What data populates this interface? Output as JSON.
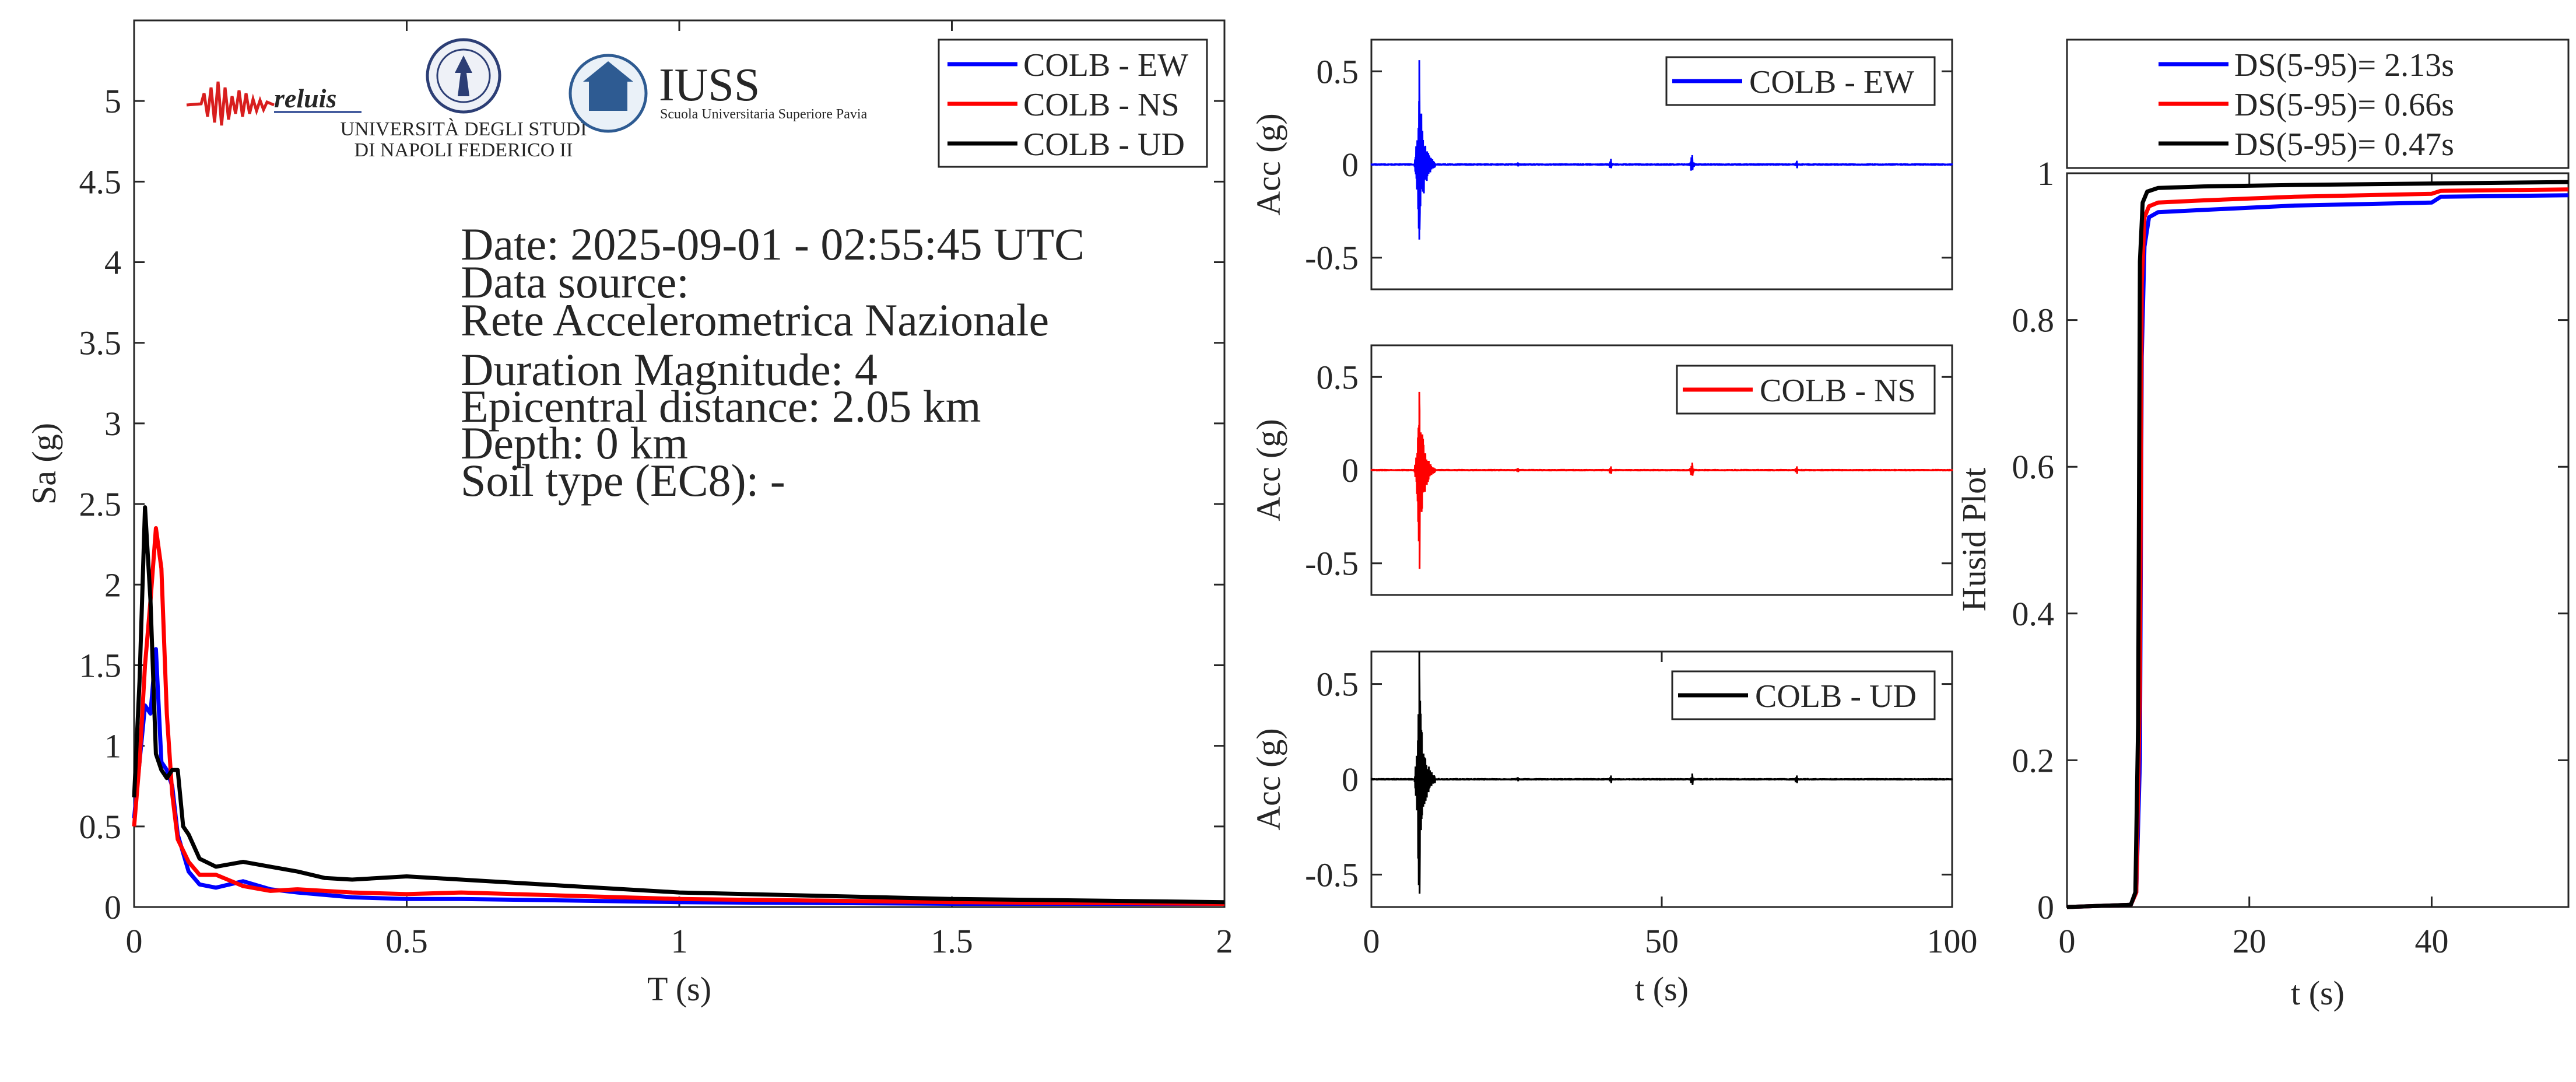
{
  "logos": {
    "reluis": "reluis",
    "unina_line1": "UNIVERSITÀ DEGLI STUDI",
    "unina_line2": "DI NAPOLI FEDERICO II",
    "iuss_name": "IUSS",
    "iuss_sub": "Scuola Universitaria Superiore Pavia"
  },
  "info": {
    "date": "Date: 2025-09-01 - 02:55:45 UTC",
    "data_source": "Data source:",
    "network": "Rete Accelerometrica Nazionale",
    "magnitude": "Duration Magnitude: 4",
    "distance": "Epicentral distance: 2.05 km",
    "depth": "Depth: 0 km",
    "soil": "Soil type (EC8): -"
  },
  "colors": {
    "ew": "#0000ff",
    "ns": "#ff0000",
    "ud": "#000000",
    "axis": "#262626"
  },
  "chart_data": [
    {
      "type": "line",
      "xlabel": "T (s)",
      "ylabel": "Sa (g)",
      "xlim": [
        0,
        2
      ],
      "ylim": [
        0,
        5.5
      ],
      "xticks": [
        "0",
        "0.5",
        "1",
        "1.5",
        "2"
      ],
      "yticks": [
        "0",
        "0.5",
        "1",
        "1.5",
        "2",
        "2.5",
        "3",
        "3.5",
        "4",
        "4.5",
        "5"
      ],
      "legend": "top-right",
      "series": [
        {
          "name": "COLB - EW",
          "color": "#0000ff",
          "x": [
            0,
            0.01,
            0.02,
            0.03,
            0.04,
            0.05,
            0.06,
            0.07,
            0.08,
            0.1,
            0.12,
            0.15,
            0.2,
            0.25,
            0.3,
            0.4,
            0.5,
            0.6,
            0.8,
            1.0,
            1.5,
            2.0
          ],
          "y": [
            0.55,
            0.9,
            1.25,
            1.2,
            1.6,
            0.9,
            0.85,
            0.75,
            0.45,
            0.22,
            0.14,
            0.12,
            0.16,
            0.11,
            0.09,
            0.06,
            0.05,
            0.05,
            0.04,
            0.03,
            0.02,
            0.02
          ]
        },
        {
          "name": "COLB - NS",
          "color": "#ff0000",
          "x": [
            0,
            0.01,
            0.02,
            0.03,
            0.04,
            0.05,
            0.06,
            0.07,
            0.08,
            0.1,
            0.12,
            0.15,
            0.2,
            0.25,
            0.3,
            0.4,
            0.5,
            0.6,
            0.8,
            1.0,
            1.5,
            2.0
          ],
          "y": [
            0.5,
            0.9,
            1.5,
            1.9,
            2.35,
            2.1,
            1.2,
            0.7,
            0.42,
            0.28,
            0.2,
            0.2,
            0.13,
            0.1,
            0.11,
            0.09,
            0.08,
            0.09,
            0.07,
            0.05,
            0.03,
            0.02
          ]
        },
        {
          "name": "COLB - UD",
          "color": "#000000",
          "x": [
            0,
            0.01,
            0.02,
            0.03,
            0.04,
            0.05,
            0.06,
            0.07,
            0.08,
            0.09,
            0.1,
            0.12,
            0.15,
            0.2,
            0.25,
            0.3,
            0.35,
            0.4,
            0.5,
            0.6,
            0.8,
            1.0,
            1.5,
            2.0
          ],
          "y": [
            0.68,
            1.4,
            2.48,
            1.9,
            0.95,
            0.85,
            0.8,
            0.85,
            0.85,
            0.5,
            0.45,
            0.3,
            0.25,
            0.28,
            0.25,
            0.22,
            0.18,
            0.17,
            0.19,
            0.17,
            0.13,
            0.09,
            0.05,
            0.03
          ]
        }
      ]
    },
    {
      "type": "line",
      "ylabel": "Acc (g)",
      "xlim": [
        0,
        100
      ],
      "ylim": [
        -0.67,
        0.67
      ],
      "yticks": [
        "-0.5",
        "0",
        "0.5"
      ],
      "legend": "top-right",
      "series": [
        {
          "name": "COLB - EW",
          "color": "#0000ff",
          "bursts": [
            {
              "t": 8,
              "pos": 0.56,
              "neg": -0.35,
              "dur": 3
            },
            {
              "t": 25,
              "pos": 0.01,
              "neg": -0.01,
              "dur": 1.5
            },
            {
              "t": 41,
              "pos": 0.03,
              "neg": -0.02,
              "dur": 1.2
            },
            {
              "t": 55,
              "pos": 0.05,
              "neg": -0.03,
              "dur": 1.5
            },
            {
              "t": 73,
              "pos": 0.02,
              "neg": -0.02,
              "dur": 1.2
            }
          ]
        }
      ]
    },
    {
      "type": "line",
      "ylabel": "Acc (g)",
      "xlim": [
        0,
        100
      ],
      "ylim": [
        -0.67,
        0.67
      ],
      "yticks": [
        "-0.5",
        "0",
        "0.5"
      ],
      "legend": "top-right",
      "series": [
        {
          "name": "COLB - NS",
          "color": "#ff0000",
          "bursts": [
            {
              "t": 8,
              "pos": 0.42,
              "neg": -0.53,
              "dur": 3
            },
            {
              "t": 25,
              "pos": 0.01,
              "neg": -0.01,
              "dur": 1.5
            },
            {
              "t": 41,
              "pos": 0.02,
              "neg": -0.02,
              "dur": 1.2
            },
            {
              "t": 55,
              "pos": 0.04,
              "neg": -0.03,
              "dur": 1.5
            },
            {
              "t": 73,
              "pos": 0.02,
              "neg": -0.02,
              "dur": 1.2
            }
          ]
        }
      ]
    },
    {
      "type": "line",
      "xlabel": "t (s)",
      "ylabel": "Acc (g)",
      "xlim": [
        0,
        100
      ],
      "ylim": [
        -0.67,
        0.67
      ],
      "xticks": [
        "0",
        "50",
        "100"
      ],
      "yticks": [
        "-0.5",
        "0",
        "0.5"
      ],
      "legend": "top-right",
      "series": [
        {
          "name": "COLB - UD",
          "color": "#000000",
          "bursts": [
            {
              "t": 8,
              "pos": 0.67,
              "neg": -0.6,
              "dur": 3
            },
            {
              "t": 25,
              "pos": 0.01,
              "neg": -0.01,
              "dur": 1.5
            },
            {
              "t": 41,
              "pos": 0.02,
              "neg": -0.02,
              "dur": 1.2
            },
            {
              "t": 55,
              "pos": 0.03,
              "neg": -0.03,
              "dur": 1.5
            },
            {
              "t": 73,
              "pos": 0.02,
              "neg": -0.02,
              "dur": 1.2
            }
          ]
        }
      ]
    },
    {
      "type": "line",
      "xlabel": "t (s)",
      "ylabel": "Husid Plot",
      "xlim": [
        0,
        55
      ],
      "ylim": [
        0,
        1
      ],
      "xticks": [
        "0",
        "20",
        "40"
      ],
      "yticks": [
        "0",
        "0.2",
        "0.4",
        "0.6",
        "0.8",
        "1"
      ],
      "legend": "top",
      "series": [
        {
          "name": "DS(5-95)= 2.13s",
          "color": "#0000ff",
          "x": [
            0,
            7,
            7.6,
            8,
            8.2,
            8.5,
            9,
            10,
            15,
            25,
            40,
            41,
            55
          ],
          "y": [
            0,
            0.003,
            0.02,
            0.2,
            0.75,
            0.9,
            0.94,
            0.947,
            0.95,
            0.956,
            0.96,
            0.968,
            0.97
          ]
        },
        {
          "name": "DS(5-95)= 0.66s",
          "color": "#ff0000",
          "x": [
            0,
            7,
            7.6,
            8,
            8.2,
            8.5,
            9,
            10,
            15,
            25,
            40,
            41,
            55
          ],
          "y": [
            0,
            0.003,
            0.02,
            0.3,
            0.85,
            0.94,
            0.955,
            0.96,
            0.963,
            0.968,
            0.972,
            0.976,
            0.978
          ]
        },
        {
          "name": "DS(5-95)= 0.47s",
          "color": "#000000",
          "x": [
            0,
            7,
            7.5,
            7.8,
            8,
            8.3,
            8.8,
            10,
            15,
            25,
            40,
            55
          ],
          "y": [
            0,
            0.003,
            0.02,
            0.25,
            0.88,
            0.96,
            0.975,
            0.98,
            0.982,
            0.984,
            0.986,
            0.988
          ]
        }
      ]
    }
  ]
}
